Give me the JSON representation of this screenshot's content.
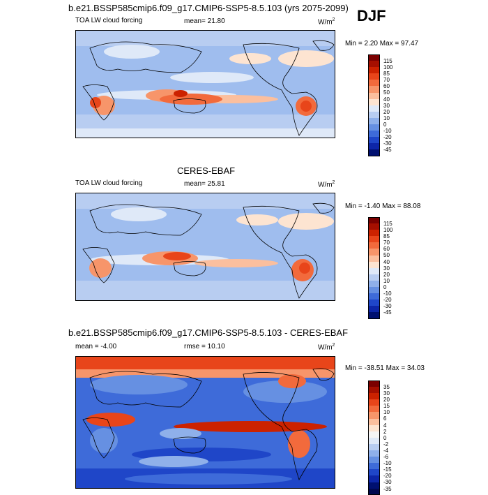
{
  "page": {
    "top_title": "b.e21.BSSP585cmip6.f09_g17.CMIP6-SSP5-8.5.103 (yrs 2075-2099)",
    "season": "DJF"
  },
  "panels": [
    {
      "heading": "",
      "field_label": "TOA LW cloud forcing",
      "stat_label": "mean=  21.80",
      "units": "W/m",
      "units_sup": "2",
      "minmax": "Min =   2.20 Max =  97.47",
      "colorbar_levels": [
        "115",
        "100",
        "85",
        "70",
        "60",
        "50",
        "40",
        "30",
        "20",
        "10",
        "0",
        "-10",
        "-20",
        "-30",
        "-45"
      ],
      "colorbar_colors": [
        "#7a0000",
        "#a50f00",
        "#cc2200",
        "#e8451a",
        "#f26a3c",
        "#f7956a",
        "#fbbf9e",
        "#fde4d1",
        "#dfe9f8",
        "#b8cdf1",
        "#8fb0ea",
        "#6690e2",
        "#3e6bd9",
        "#1f46c8",
        "#0d26a8",
        "#001070"
      ]
    },
    {
      "heading": "CERES-EBAF",
      "field_label": "TOA LW cloud forcing",
      "stat_label": "mean=  25.81",
      "units": "W/m",
      "units_sup": "2",
      "minmax": "Min =  -1.40 Max =  88.08",
      "colorbar_levels": [
        "115",
        "100",
        "85",
        "70",
        "60",
        "50",
        "40",
        "30",
        "20",
        "10",
        "0",
        "-10",
        "-20",
        "-30",
        "-45"
      ],
      "colorbar_colors": [
        "#7a0000",
        "#a50f00",
        "#cc2200",
        "#e8451a",
        "#f26a3c",
        "#f7956a",
        "#fbbf9e",
        "#fde4d1",
        "#dfe9f8",
        "#b8cdf1",
        "#8fb0ea",
        "#6690e2",
        "#3e6bd9",
        "#1f46c8",
        "#0d26a8",
        "#001070"
      ]
    },
    {
      "heading": "b.e21.BSSP585cmip6.f09_g17.CMIP6-SSP5-8.5.103 - CERES-EBAF",
      "field_label": "mean =  -4.00",
      "stat_label": "rmse =  10.10",
      "units": "W/m",
      "units_sup": "2",
      "minmax": "Min = -38.51 Max =  34.03",
      "colorbar_levels": [
        "35",
        "30",
        "20",
        "15",
        "10",
        "6",
        "4",
        "2",
        "0",
        "-2",
        "-4",
        "-6",
        "-10",
        "-15",
        "-20",
        "-30",
        "-35"
      ],
      "colorbar_colors": [
        "#7a0000",
        "#a50f00",
        "#cc2200",
        "#e8451a",
        "#f26a3c",
        "#f7956a",
        "#fbbf9e",
        "#fde4d1",
        "#f5f5f5",
        "#dfe9f8",
        "#b8cdf1",
        "#8fb0ea",
        "#6690e2",
        "#3e6bd9",
        "#1f46c8",
        "#0d26a8",
        "#001070",
        "#00084f"
      ]
    }
  ]
}
